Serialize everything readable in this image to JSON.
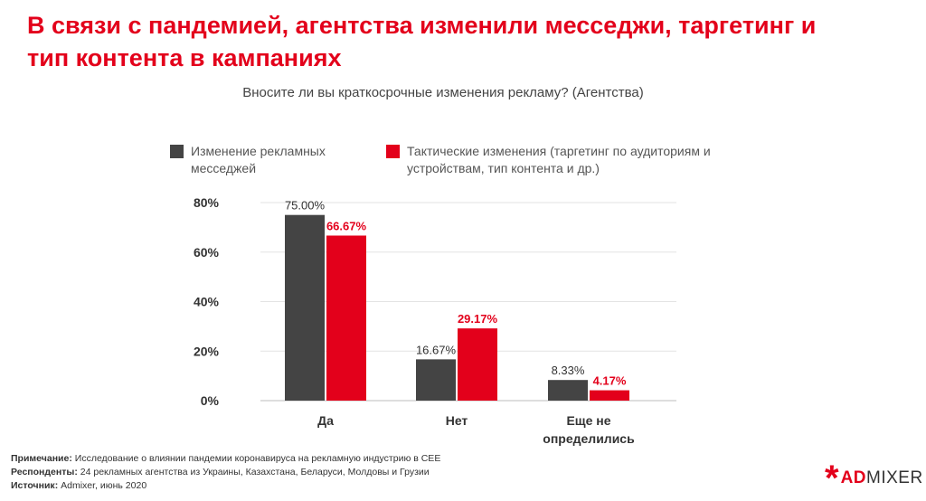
{
  "title": "В связи с пандемией, агентства изменили месседжи, таргетинг и тип контента в кампаниях",
  "colors": {
    "accent": "#e3001b",
    "dark": "#444444"
  },
  "chart_data": {
    "type": "bar",
    "title": "Вносите ли вы краткосрочные изменения рекламу? (Агентства)",
    "categories": [
      "Да",
      "Нет",
      "Еще не определились"
    ],
    "series": [
      {
        "name": "Изменение рекламных месседжей",
        "values": [
          75.0,
          16.67,
          8.33
        ],
        "labels": [
          "75.00%",
          "16.67%",
          "8.33%"
        ],
        "color": "#444444",
        "label_color": "#333333"
      },
      {
        "name": "Тактические изменения (таргетинг по аудиториям и устройствам, тип контента и др.)",
        "values": [
          66.67,
          29.17,
          4.17
        ],
        "labels": [
          "66.67%",
          "29.17%",
          "4.17%"
        ],
        "color": "#e3001b",
        "label_color": "#e3001b"
      }
    ],
    "y_ticks": [
      0,
      20,
      40,
      60,
      80
    ],
    "y_tick_labels": [
      "0%",
      "20%",
      "40%",
      "60%",
      "80%"
    ],
    "ylim": [
      0,
      80
    ],
    "grid": true,
    "legend_position": "top"
  },
  "footer": {
    "note_label": "Примечание:",
    "note_text": "Исследование о влиянии пандемии коронавируса на рекламную индустрию в CEE",
    "respondents_label": "Респонденты:",
    "respondents_text": "24 рекламных агентства из Украины, Казахстана, Беларуси, Молдовы и Грузии",
    "source_label": "Источник:",
    "source_text": "Admixer, июнь 2020"
  },
  "brand": {
    "symbol": "*",
    "prefix": "AD",
    "suffix": "MIXER"
  }
}
